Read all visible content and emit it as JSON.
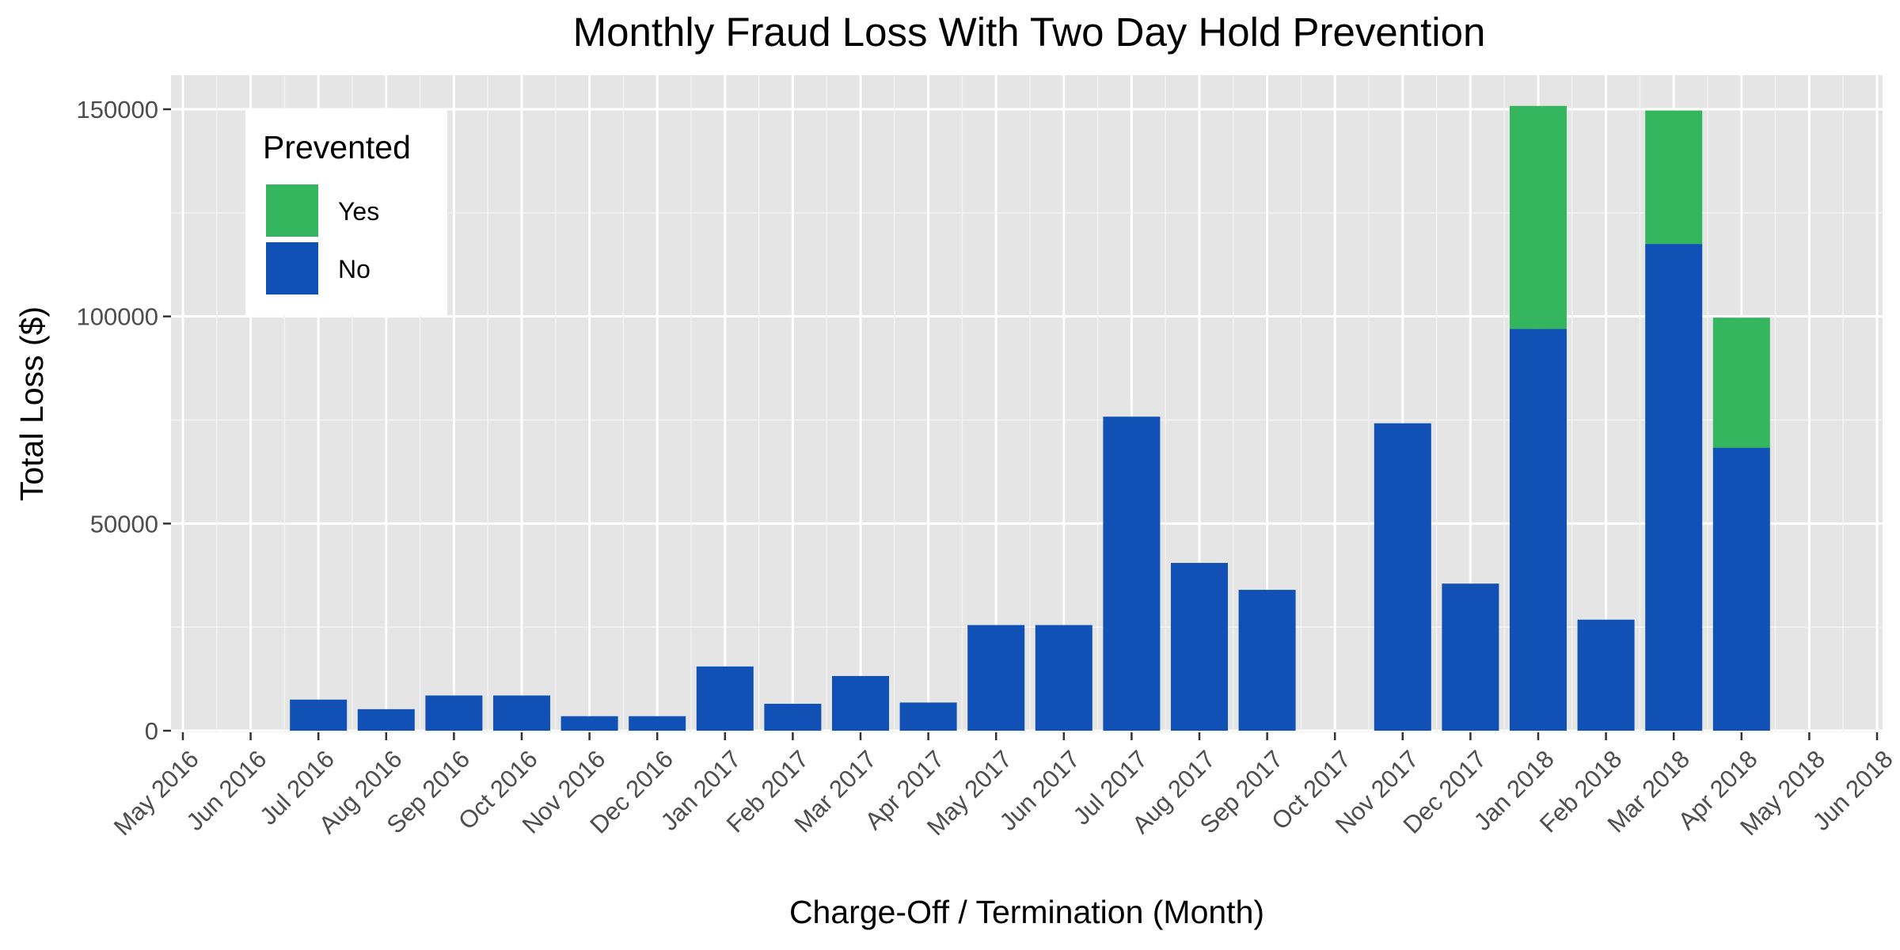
{
  "chart_data": {
    "type": "bar",
    "stacked": true,
    "title": "Monthly Fraud Loss With Two Day Hold Prevention",
    "xlabel": "Charge-Off / Termination (Month)",
    "ylabel": "Total Loss ($)",
    "ylim": [
      -7500,
      158000
    ],
    "yticks": [
      0,
      50000,
      100000,
      150000
    ],
    "grid": true,
    "legend": {
      "title": "Prevented",
      "position": "top-left"
    },
    "x_tick_labels": [
      "May 2016",
      "Jun 2016",
      "Jul 2016",
      "Aug 2016",
      "Sep 2016",
      "Oct 2016",
      "Nov 2016",
      "Dec 2016",
      "Jan 2017",
      "Feb 2017",
      "Mar 2017",
      "Apr 2017",
      "May 2017",
      "Jun 2017",
      "Jul 2017",
      "Aug 2017",
      "Sep 2017",
      "Oct 2017",
      "Nov 2017",
      "Dec 2017",
      "Jan 2018",
      "Feb 2018",
      "Mar 2018",
      "Apr 2018",
      "May 2018",
      "Jun 2018"
    ],
    "categories": [
      "Jul 2016",
      "Aug 2016",
      "Sep 2016",
      "Oct 2016",
      "Nov 2016",
      "Dec 2016",
      "Jan 2017",
      "Feb 2017",
      "Mar 2017",
      "Apr 2017",
      "May 2017",
      "Jun 2017",
      "Jul 2017",
      "Aug 2017",
      "Sep 2017",
      "Nov 2017",
      "Dec 2017",
      "Jan 2018",
      "Feb 2018",
      "Mar 2018",
      "Apr 2018"
    ],
    "series": [
      {
        "name": "No",
        "color": "#1150b4",
        "values": [
          7500,
          5200,
          8500,
          8500,
          3500,
          3500,
          15500,
          6500,
          13200,
          6800,
          25500,
          25500,
          75800,
          40500,
          34000,
          74200,
          35500,
          97000,
          26800,
          117500,
          68300
        ]
      },
      {
        "name": "Yes",
        "color": "#33b65e",
        "values": [
          0,
          0,
          0,
          0,
          0,
          0,
          0,
          0,
          0,
          0,
          0,
          0,
          0,
          0,
          0,
          0,
          0,
          53800,
          0,
          32200,
          31400
        ]
      }
    ]
  }
}
